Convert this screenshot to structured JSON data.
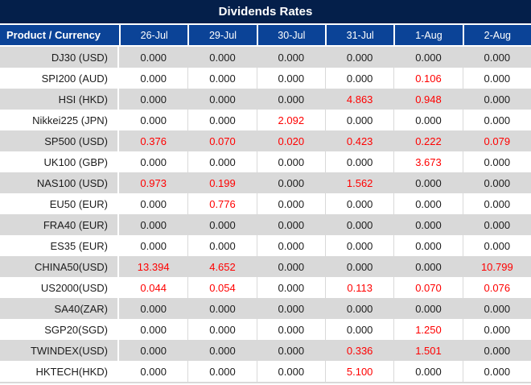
{
  "title": "Dividends Rates",
  "colors": {
    "title_bg": "#041f4a",
    "header_bg": "#0b4397",
    "alt_row_bg": "#d9d9d9",
    "row_bg": "#ffffff",
    "header_text": "#ffffff",
    "value_text": "#1c1c1c",
    "nonzero_value_red": "#ff0000"
  },
  "chart_data": {
    "type": "table",
    "title": "Dividends Rates",
    "columns": [
      "Product / Currency",
      "26-Jul",
      "29-Jul",
      "30-Jul",
      "31-Jul",
      "1-Aug",
      "2-Aug"
    ],
    "rows": [
      {
        "product": "DJ30 (USD)",
        "values": [
          "0.000",
          "0.000",
          "0.000",
          "0.000",
          "0.000",
          "0.000"
        ],
        "red": [
          false,
          false,
          false,
          false,
          false,
          false
        ]
      },
      {
        "product": "SPI200 (AUD)",
        "values": [
          "0.000",
          "0.000",
          "0.000",
          "0.000",
          "0.106",
          "0.000"
        ],
        "red": [
          false,
          false,
          false,
          false,
          true,
          false
        ]
      },
      {
        "product": "HSI (HKD)",
        "values": [
          "0.000",
          "0.000",
          "0.000",
          "4.863",
          "0.948",
          "0.000"
        ],
        "red": [
          false,
          false,
          false,
          true,
          true,
          false
        ]
      },
      {
        "product": "Nikkei225 (JPN)",
        "values": [
          "0.000",
          "0.000",
          "2.092",
          "0.000",
          "0.000",
          "0.000"
        ],
        "red": [
          false,
          false,
          true,
          false,
          false,
          false
        ]
      },
      {
        "product": "SP500 (USD)",
        "values": [
          "0.376",
          "0.070",
          "0.020",
          "0.423",
          "0.222",
          "0.079"
        ],
        "red": [
          true,
          true,
          true,
          true,
          true,
          true
        ]
      },
      {
        "product": "UK100 (GBP)",
        "values": [
          "0.000",
          "0.000",
          "0.000",
          "0.000",
          "3.673",
          "0.000"
        ],
        "red": [
          false,
          false,
          false,
          false,
          true,
          false
        ]
      },
      {
        "product": "NAS100 (USD)",
        "values": [
          "0.973",
          "0.199",
          "0.000",
          "1.562",
          "0.000",
          "0.000"
        ],
        "red": [
          true,
          true,
          false,
          true,
          false,
          false
        ]
      },
      {
        "product": "EU50 (EUR)",
        "values": [
          "0.000",
          "0.776",
          "0.000",
          "0.000",
          "0.000",
          "0.000"
        ],
        "red": [
          false,
          true,
          false,
          false,
          false,
          false
        ]
      },
      {
        "product": "FRA40 (EUR)",
        "values": [
          "0.000",
          "0.000",
          "0.000",
          "0.000",
          "0.000",
          "0.000"
        ],
        "red": [
          false,
          false,
          false,
          false,
          false,
          false
        ]
      },
      {
        "product": "ES35 (EUR)",
        "values": [
          "0.000",
          "0.000",
          "0.000",
          "0.000",
          "0.000",
          "0.000"
        ],
        "red": [
          false,
          false,
          false,
          false,
          false,
          false
        ]
      },
      {
        "product": "CHINA50(USD)",
        "values": [
          "13.394",
          "4.652",
          "0.000",
          "0.000",
          "0.000",
          "10.799"
        ],
        "red": [
          true,
          true,
          false,
          false,
          false,
          true
        ]
      },
      {
        "product": "US2000(USD)",
        "values": [
          "0.044",
          "0.054",
          "0.000",
          "0.113",
          "0.070",
          "0.076"
        ],
        "red": [
          true,
          true,
          false,
          true,
          true,
          true
        ]
      },
      {
        "product": "SA40(ZAR)",
        "values": [
          "0.000",
          "0.000",
          "0.000",
          "0.000",
          "0.000",
          "0.000"
        ],
        "red": [
          false,
          false,
          false,
          false,
          false,
          false
        ]
      },
      {
        "product": "SGP20(SGD)",
        "values": [
          "0.000",
          "0.000",
          "0.000",
          "0.000",
          "1.250",
          "0.000"
        ],
        "red": [
          false,
          false,
          false,
          false,
          true,
          false
        ]
      },
      {
        "product": "TWINDEX(USD)",
        "values": [
          "0.000",
          "0.000",
          "0.000",
          "0.336",
          "1.501",
          "0.000"
        ],
        "red": [
          false,
          false,
          false,
          true,
          true,
          false
        ]
      },
      {
        "product": "HKTECH(HKD)",
        "values": [
          "0.000",
          "0.000",
          "0.000",
          "5.100",
          "0.000",
          "0.000"
        ],
        "red": [
          false,
          false,
          false,
          true,
          false,
          false
        ]
      }
    ]
  }
}
